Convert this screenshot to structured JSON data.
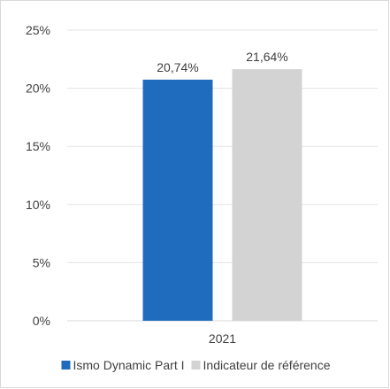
{
  "chart_data": {
    "type": "bar",
    "categories": [
      "2021"
    ],
    "series": [
      {
        "name": "Ismo Dynamic Part I",
        "values": [
          20.74
        ],
        "color": "#1f6cbf",
        "label": "20,74%"
      },
      {
        "name": "Indicateur de référence",
        "values": [
          21.64
        ],
        "color": "#d3d3d3",
        "label": "21,64%"
      }
    ],
    "ylim": [
      0,
      25
    ],
    "yticks": [
      0,
      5,
      10,
      15,
      20,
      25
    ],
    "ytick_labels": [
      "0%",
      "5%",
      "10%",
      "15%",
      "20%",
      "25%"
    ],
    "grid": true,
    "legend": "bottom",
    "title": "",
    "xlabel": "",
    "ylabel": ""
  }
}
